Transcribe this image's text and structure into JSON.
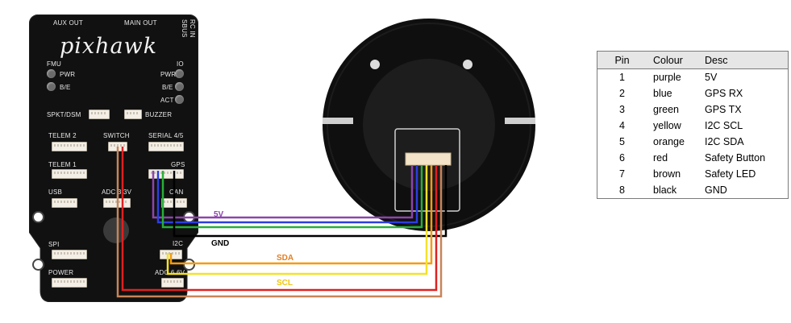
{
  "board": {
    "brand": "pixhawk",
    "top_labels": [
      "AUX OUT",
      "MAIN OUT",
      "SBUS",
      "RC IN"
    ],
    "left_leds": {
      "title": "FMU",
      "items": [
        "PWR",
        "B/E"
      ]
    },
    "right_leds": {
      "title": "IO",
      "items": [
        "PWR",
        "B/E",
        "ACT"
      ]
    },
    "ports": {
      "spkt": "SPKT/DSM",
      "buzzer": "BUZZER",
      "telem2": "TELEM 2",
      "switch": "SWITCH",
      "serial45": "SERIAL 4/5",
      "telem1": "TELEM 1",
      "gps": "GPS",
      "usb": "USB",
      "adc33": "ADC 3.3V",
      "can": "CAN",
      "spi": "SPI",
      "i2c": "I2C",
      "power": "POWER",
      "adc66": "ADC 6.6V"
    }
  },
  "wire_labels": [
    {
      "text": "5V",
      "color": "#8e44ad"
    },
    {
      "text": "GND",
      "color": "#000000"
    },
    {
      "text": "SDA",
      "color": "#e67e22"
    },
    {
      "text": "SCL",
      "color": "#f1c40f"
    }
  ],
  "colors": {
    "purple": "#8e44ad",
    "blue": "#2c3ee0",
    "green": "#27ae3a",
    "yellow": "#f5e12a",
    "orange": "#f39c12",
    "red": "#e02020",
    "brown": "#c8845a",
    "black": "#000000"
  },
  "table": {
    "headers": [
      "Pin",
      "Colour",
      "Desc"
    ],
    "rows": [
      [
        "1",
        "purple",
        "5V"
      ],
      [
        "2",
        "blue",
        "GPS RX"
      ],
      [
        "3",
        "green",
        "GPS TX"
      ],
      [
        "4",
        "yellow",
        "I2C SCL"
      ],
      [
        "5",
        "orange",
        "I2C SDA"
      ],
      [
        "6",
        "red",
        "Safety Button"
      ],
      [
        "7",
        "brown",
        "Safety LED"
      ],
      [
        "8",
        "black",
        "GND"
      ]
    ]
  }
}
